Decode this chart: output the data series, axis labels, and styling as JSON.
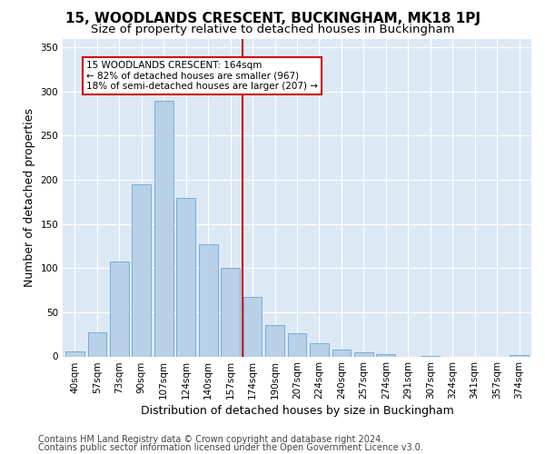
{
  "title": "15, WOODLANDS CRESCENT, BUCKINGHAM, MK18 1PJ",
  "subtitle": "Size of property relative to detached houses in Buckingham",
  "xlabel": "Distribution of detached houses by size in Buckingham",
  "ylabel": "Number of detached properties",
  "categories": [
    "40sqm",
    "57sqm",
    "73sqm",
    "90sqm",
    "107sqm",
    "124sqm",
    "140sqm",
    "157sqm",
    "174sqm",
    "190sqm",
    "207sqm",
    "224sqm",
    "240sqm",
    "257sqm",
    "274sqm",
    "291sqm",
    "307sqm",
    "324sqm",
    "341sqm",
    "357sqm",
    "374sqm"
  ],
  "values": [
    6,
    27,
    108,
    195,
    290,
    180,
    127,
    100,
    67,
    35,
    26,
    15,
    8,
    5,
    3,
    0,
    1,
    0,
    0,
    0,
    2
  ],
  "bar_color": "#b8d0e8",
  "bar_edge_color": "#7aadd4",
  "vline_color": "#cc0000",
  "annotation_text": "15 WOODLANDS CRESCENT: 164sqm\n← 82% of detached houses are smaller (967)\n18% of semi-detached houses are larger (207) →",
  "annotation_box_color": "#ffffff",
  "annotation_box_edge_color": "#cc0000",
  "ylim": [
    0,
    360
  ],
  "yticks": [
    0,
    50,
    100,
    150,
    200,
    250,
    300,
    350
  ],
  "footer_line1": "Contains HM Land Registry data © Crown copyright and database right 2024.",
  "footer_line2": "Contains public sector information licensed under the Open Government Licence v3.0.",
  "plot_background_color": "#dce9f5",
  "title_fontsize": 11,
  "subtitle_fontsize": 9.5,
  "axis_label_fontsize": 9,
  "tick_fontsize": 7.5,
  "footer_fontsize": 7,
  "vline_pos": 7.55
}
